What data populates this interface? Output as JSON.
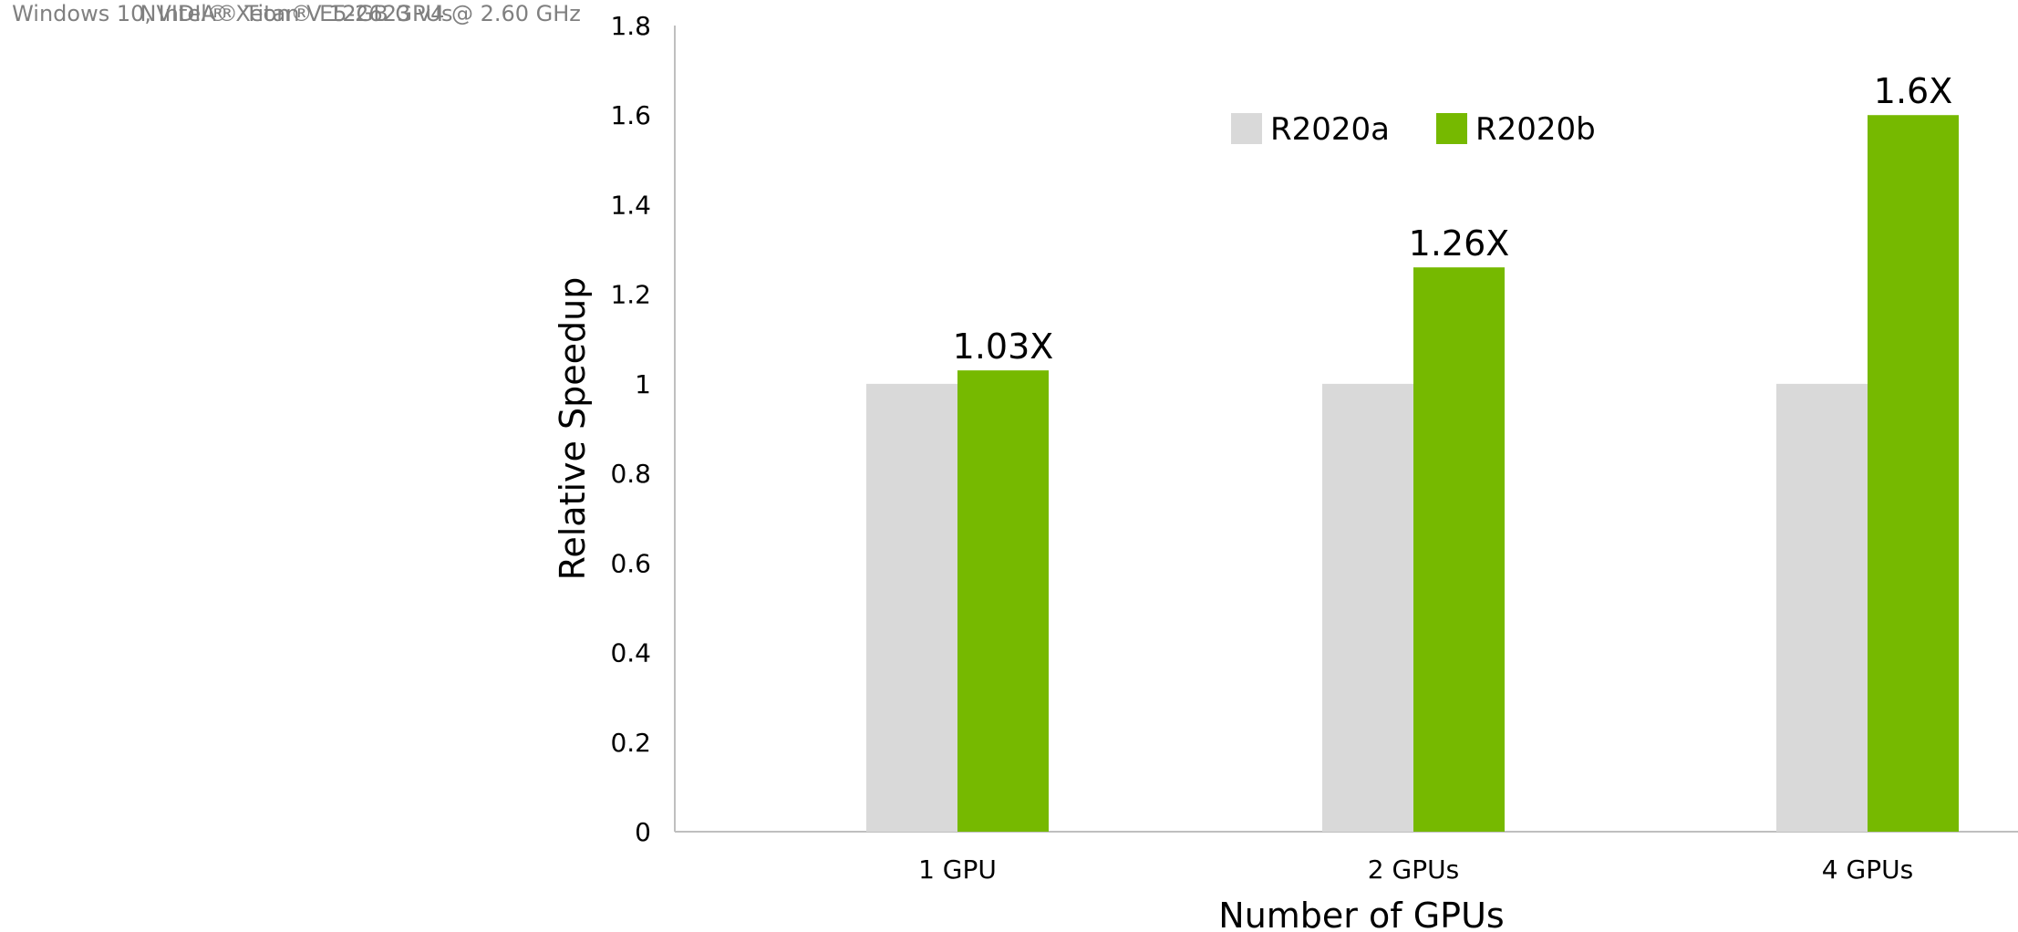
{
  "footnote": {
    "line1": "Windows 10, Intel® Xeon® E5-2623 v4 @ 2.60 GHz",
    "line2": "NVIDIA® Titan V 12GB GPUs"
  },
  "chart_data": {
    "type": "bar",
    "title": "",
    "xlabel": "Number of GPUs",
    "ylabel": "Relative Speedup",
    "categories": [
      "1 GPU",
      "2 GPUs",
      "4 GPUs"
    ],
    "series": [
      {
        "name": "R2020a",
        "values": [
          1,
          1,
          1
        ],
        "color": "#d9d9d9",
        "labels": [
          "",
          "",
          ""
        ]
      },
      {
        "name": "R2020b",
        "values": [
          1.03,
          1.26,
          1.6
        ],
        "color": "#76b900",
        "labels": [
          "1.03X",
          "1.26X",
          "1.6X"
        ]
      }
    ],
    "ylim": [
      0,
      1.8
    ],
    "yticks": [
      "0",
      "0.2",
      "0.4",
      "0.6",
      "0.8",
      "1",
      "1.2",
      "1.4",
      "1.6",
      "1.8"
    ],
    "grid": false,
    "legend_position": "top-center"
  }
}
